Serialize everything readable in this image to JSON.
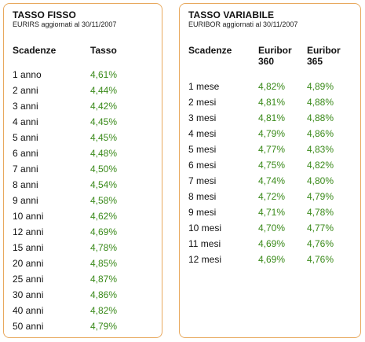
{
  "colors": {
    "border": "#e8a95e",
    "value": "#3a8a1a",
    "text": "#111111"
  },
  "fisso": {
    "title": "TASSO FISSO",
    "subtitle": "EURIRS aggiornati al 30/11/2007",
    "col_scadenze": "Scadenze",
    "col_tasso": "Tasso",
    "rows": [
      {
        "term": "1 anno",
        "rate": "4,61%"
      },
      {
        "term": "2 anni",
        "rate": "4,44%"
      },
      {
        "term": "3 anni",
        "rate": "4,42%"
      },
      {
        "term": "4 anni",
        "rate": "4,45%"
      },
      {
        "term": "5 anni",
        "rate": "4,45%"
      },
      {
        "term": "6 anni",
        "rate": "4,48%"
      },
      {
        "term": "7 anni",
        "rate": "4,50%"
      },
      {
        "term": "8 anni",
        "rate": "4,54%"
      },
      {
        "term": "9 anni",
        "rate": "4,58%"
      },
      {
        "term": "10 anni",
        "rate": "4,62%"
      },
      {
        "term": "12 anni",
        "rate": "4,69%"
      },
      {
        "term": "15 anni",
        "rate": "4,78%"
      },
      {
        "term": "20 anni",
        "rate": "4,85%"
      },
      {
        "term": "25 anni",
        "rate": "4,87%"
      },
      {
        "term": "30 anni",
        "rate": "4,86%"
      },
      {
        "term": "40 anni",
        "rate": "4,82%"
      },
      {
        "term": "50 anni",
        "rate": "4,79%"
      }
    ]
  },
  "variabile": {
    "title": "TASSO VARIABILE",
    "subtitle": "EURIBOR aggiornati al 30/11/2007",
    "col_scadenze": "Scadenze",
    "col_360_line1": "Euribor",
    "col_360_line2": "360",
    "col_365_line1": "Euribor",
    "col_365_line2": "365",
    "rows": [
      {
        "term": "1 mese",
        "e360": "4,82%",
        "e365": "4,89%"
      },
      {
        "term": "2 mesi",
        "e360": "4,81%",
        "e365": "4,88%"
      },
      {
        "term": "3 mesi",
        "e360": "4,81%",
        "e365": "4,88%"
      },
      {
        "term": "4 mesi",
        "e360": "4,79%",
        "e365": "4,86%"
      },
      {
        "term": "5 mesi",
        "e360": "4,77%",
        "e365": "4,83%"
      },
      {
        "term": "6 mesi",
        "e360": "4,75%",
        "e365": "4,82%"
      },
      {
        "term": "7 mesi",
        "e360": "4,74%",
        "e365": "4,80%"
      },
      {
        "term": "8 mesi",
        "e360": "4,72%",
        "e365": "4,79%"
      },
      {
        "term": "9 mesi",
        "e360": "4,71%",
        "e365": "4,78%"
      },
      {
        "term": "10 mesi",
        "e360": "4,70%",
        "e365": "4,77%"
      },
      {
        "term": "11 mesi",
        "e360": "4,69%",
        "e365": "4,76%"
      },
      {
        "term": "12 mesi",
        "e360": "4,69%",
        "e365": "4,76%"
      }
    ]
  }
}
